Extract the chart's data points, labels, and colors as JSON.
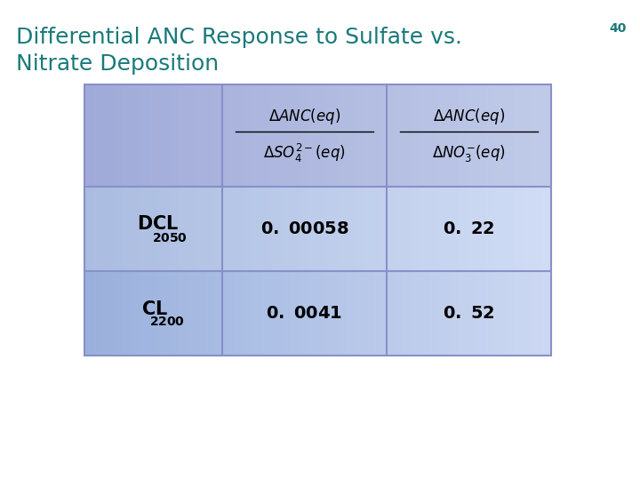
{
  "title_line1": "Differential ANC Response to Sulfate vs.",
  "title_line2": "Nitrate Deposition",
  "title_color": "#1a7a7a",
  "title_fontsize": 18,
  "slide_number": "40",
  "slide_number_color": "#1a7a7a",
  "slide_number_fontsize": 10,
  "background_color": "#ffffff",
  "table": {
    "cell_bg_header": "#b0b8e8",
    "cell_bg_row1": "#c8d0f0",
    "cell_bg_row2": "#b8c4ec",
    "cell_border_color": "#8890c8",
    "cell_text_color": "#000000",
    "data_fontsize": 13,
    "header_fontsize": 11,
    "row1_col1": "0. 00058",
    "row1_col2": "0. 22",
    "row2_col1": "0. 0041",
    "row2_col2": "0. 52"
  }
}
